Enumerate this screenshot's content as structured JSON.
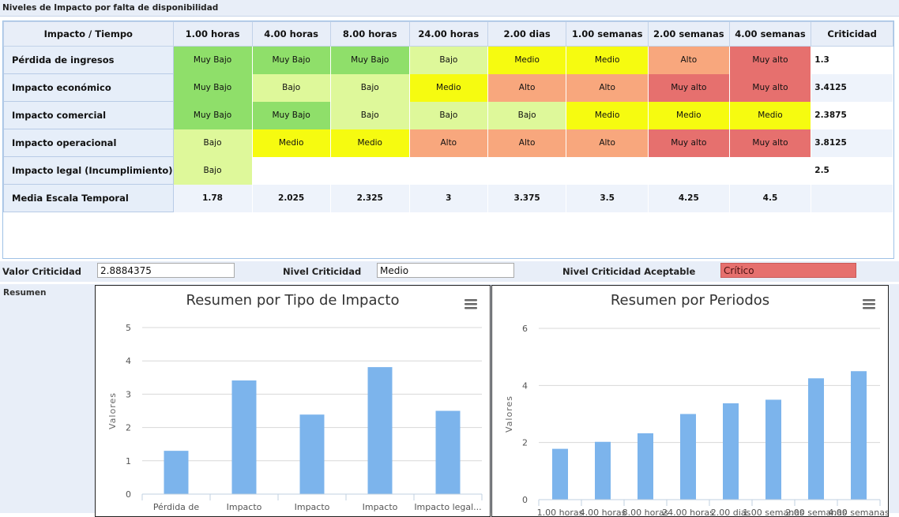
{
  "panel": {
    "title": "Niveles de Impacto por falta de disponibilidad"
  },
  "grid": {
    "corner_header": "Impacto / Tiempo",
    "period_headers": [
      "1.00 horas",
      "4.00 horas",
      "8.00 horas",
      "24.00 horas",
      "2.00 dias",
      "1.00 semanas",
      "2.00 semanas",
      "4.00 semanas"
    ],
    "criticidad_header": "Criticidad",
    "rows": [
      {
        "label": "Pérdida de ingresos",
        "levels": [
          "Muy Bajo",
          "Muy Bajo",
          "Muy Bajo",
          "Bajo",
          "Medio",
          "Medio",
          "Alto",
          "Muy alto"
        ],
        "criticidad": "1.3"
      },
      {
        "label": "Impacto económico",
        "levels": [
          "Muy Bajo",
          "Bajo",
          "Bajo",
          "Medio",
          "Alto",
          "Alto",
          "Muy alto",
          "Muy alto"
        ],
        "criticidad": "3.4125"
      },
      {
        "label": "Impacto comercial",
        "levels": [
          "Muy Bajo",
          "Muy Bajo",
          "Bajo",
          "Bajo",
          "Bajo",
          "Medio",
          "Medio",
          "Medio"
        ],
        "criticidad": "2.3875"
      },
      {
        "label": "Impacto operacional",
        "levels": [
          "Bajo",
          "Medio",
          "Medio",
          "Alto",
          "Alto",
          "Alto",
          "Muy alto",
          "Muy alto"
        ],
        "criticidad": "3.8125"
      },
      {
        "label": "Impacto legal (Incumplimiento)",
        "levels": [
          "Bajo",
          "",
          "",
          "",
          "",
          "",
          "",
          ""
        ],
        "criticidad": "2.5"
      }
    ],
    "average_row": {
      "label": "Media Escala Temporal",
      "values": [
        "1.78",
        "2.025",
        "2.325",
        "3",
        "3.375",
        "3.5",
        "4.25",
        "4.5"
      ]
    }
  },
  "form": {
    "valor_label": "Valor Criticidad",
    "valor_value": "2.8884375",
    "nivel_label": "Nivel Criticidad",
    "nivel_value": "Medio",
    "aceptable_label": "Nivel Criticidad Aceptable",
    "aceptable_value": "Crítico"
  },
  "summary": {
    "label": "Resumen"
  },
  "level_colors": {
    "Muy Bajo": "#8fdf6a",
    "Bajo": "#def89a",
    "Medio": "#f6fb10",
    "Alto": "#f8a77d",
    "Muy alto": "#e6706e"
  },
  "chart_data": [
    {
      "type": "bar",
      "title": "Resumen por Tipo de Impacto",
      "ylabel": "Valores",
      "ylim": [
        0,
        5
      ],
      "yticks": [
        0,
        1,
        2,
        3,
        4,
        5
      ],
      "categories": [
        "Pérdida de ingresos",
        "Impacto económico",
        "Impacto comercial",
        "Impacto operacional",
        "Impacto legal (Incumplimiento)"
      ],
      "category_labels": [
        "Pérdida de",
        "Impacto",
        "Impacto",
        "Impacto",
        "Impacto legal..."
      ],
      "values": [
        1.3,
        3.4125,
        2.3875,
        3.8125,
        2.5
      ],
      "color": "#7cb4ec",
      "menu_icon": "hamburger-menu-icon"
    },
    {
      "type": "bar",
      "title": "Resumen por Periodos",
      "ylabel": "Valores",
      "ylim": [
        0,
        6
      ],
      "yticks": [
        0,
        2,
        4,
        6
      ],
      "categories": [
        "1.00 horas",
        "4.00 horas",
        "8.00 horas",
        "24.00 horas",
        "2.00 dias",
        "1.00 semanas",
        "2.00 semanas",
        "4.00 semanas"
      ],
      "values": [
        1.78,
        2.025,
        2.325,
        3,
        3.375,
        3.5,
        4.25,
        4.5
      ],
      "color": "#7cb4ec",
      "menu_icon": "hamburger-menu-icon"
    }
  ]
}
